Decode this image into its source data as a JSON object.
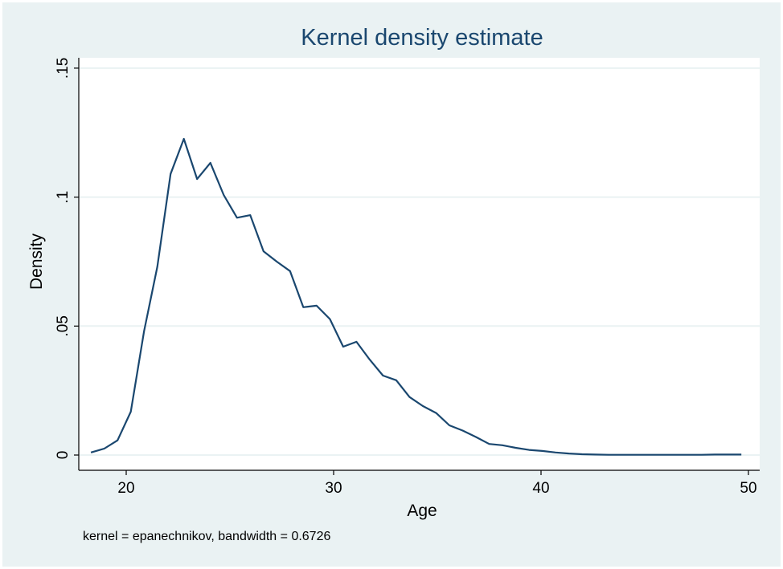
{
  "chart_data": {
    "type": "line",
    "title": "Kernel density estimate",
    "xlabel": "Age",
    "ylabel": "Density",
    "note": "kernel = epanechnikov, bandwidth = 0.6726",
    "xlim": [
      18,
      50.5
    ],
    "ylim": [
      0,
      0.15
    ],
    "xticks": [
      20,
      30,
      40,
      50
    ],
    "xtick_labels": [
      "20",
      "30",
      "40",
      "50"
    ],
    "yticks": [
      0,
      0.05,
      0.1,
      0.15
    ],
    "ytick_labels": [
      "0",
      ".05",
      ".1",
      ".15"
    ],
    "grid": true,
    "colors": {
      "line": "#1A476F",
      "title": "#1A476F",
      "background": "#EAF2F3",
      "plot": "#FFFFFF",
      "grid": "#EAF2F3"
    },
    "series": [
      {
        "name": "density",
        "x": [
          18.3,
          18.94,
          19.58,
          20.22,
          20.86,
          21.5,
          22.14,
          22.78,
          23.42,
          24.06,
          24.7,
          25.34,
          25.98,
          26.62,
          27.26,
          27.9,
          28.54,
          29.18,
          29.82,
          30.46,
          31.1,
          31.74,
          32.38,
          33.02,
          33.66,
          34.3,
          34.94,
          35.58,
          36.22,
          36.86,
          37.5,
          38.14,
          38.78,
          39.42,
          40.06,
          40.7,
          41.34,
          41.98,
          42.62,
          43.26,
          43.9,
          44.54,
          45.18,
          45.82,
          46.46,
          47.1,
          47.74,
          48.38,
          49.02,
          49.66
        ],
        "y": [
          0.001,
          0.0025,
          0.0057,
          0.0168,
          0.048,
          0.073,
          0.109,
          0.1226,
          0.107,
          0.1133,
          0.1008,
          0.092,
          0.093,
          0.079,
          0.075,
          0.0713,
          0.0573,
          0.0579,
          0.0527,
          0.042,
          0.0439,
          0.037,
          0.0308,
          0.029,
          0.0225,
          0.019,
          0.0163,
          0.0115,
          0.0095,
          0.007,
          0.0043,
          0.0038,
          0.0028,
          0.002,
          0.0016,
          0.001,
          0.0006,
          0.0003,
          0.0002,
          0.0001,
          0.0001,
          0.0001,
          0.0001,
          0.0001,
          0.0001,
          0.0001,
          0.0001,
          0.0002,
          0.0002,
          0.0002
        ]
      }
    ]
  }
}
